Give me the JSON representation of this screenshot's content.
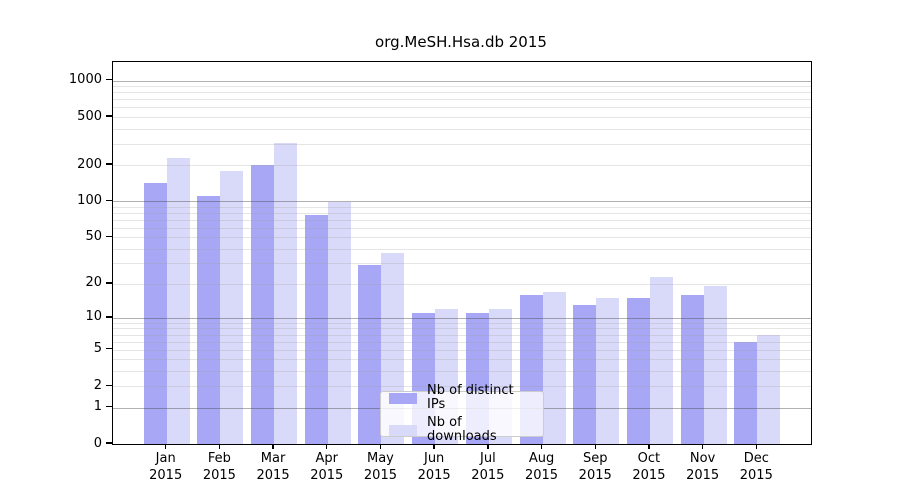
{
  "chart_data": {
    "type": "bar",
    "title": "org.MeSH.Hsa.db 2015",
    "categories": [
      "Jan",
      "Feb",
      "Mar",
      "Apr",
      "May",
      "Jun",
      "Jul",
      "Aug",
      "Sep",
      "Oct",
      "Nov",
      "Dec"
    ],
    "year_label": "2015",
    "series": [
      {
        "name": "Nb of distinct IPs",
        "color": "#a7a7f5",
        "values": [
          141,
          110,
          200,
          77,
          29,
          11,
          11,
          16,
          13,
          15,
          16,
          6
        ]
      },
      {
        "name": "Nb of downloads",
        "color": "#d9d9f9",
        "values": [
          228,
          177,
          304,
          98,
          37,
          12,
          12,
          17,
          15,
          23,
          19,
          7
        ]
      }
    ],
    "y_axis": {
      "scale": "log1p",
      "ticks": [
        0,
        1,
        2,
        5,
        10,
        20,
        50,
        100,
        200,
        500,
        1000
      ],
      "minor_gridlines": [
        2,
        3,
        4,
        5,
        6,
        7,
        8,
        9,
        20,
        30,
        40,
        50,
        60,
        70,
        80,
        90,
        200,
        300,
        400,
        500,
        600,
        700,
        800,
        900
      ],
      "major_gridlines": [
        1,
        10,
        100,
        1000
      ],
      "range": [
        0,
        1420
      ]
    },
    "legend_position": "lower center (inside plot)",
    "grid": true,
    "colors": {
      "distinct_ips_bar": "#a7a7f5",
      "downloads_bar": "#d9d9f9",
      "major_grid": "#b1b1b1",
      "minor_grid": "#e4e4e4",
      "frame": "#000000"
    }
  }
}
